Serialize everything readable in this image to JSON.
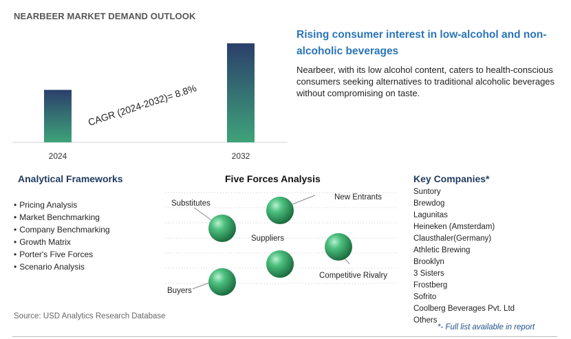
{
  "page_title": "NEARBEER MARKET DEMAND OUTLOOK",
  "chart_data": {
    "type": "bar",
    "categories": [
      "2024",
      "2032"
    ],
    "values": [
      0.53,
      1.0
    ],
    "value_note": "relative bar heights, no axis printed",
    "annotation": "CAGR (2024-2032)=   8.8%",
    "colors": {
      "top": "#2b3f6b",
      "bottom": "#3fa37a"
    }
  },
  "headline": "Rising consumer interest in low-alcohol and non-alcoholic beverages",
  "description": "Nearbeer, with its low alcohol content, caters to health-conscious consumers seeking alternatives to traditional alcoholic beverages without compromising on taste.",
  "frameworks": {
    "title": "Analytical Frameworks",
    "items": [
      "Pricing Analysis",
      "Market Benchmarking",
      "Company Benchmarking",
      "Growth Matrix",
      "Porter's Five Forces",
      "Scenario Analysis"
    ]
  },
  "five_forces": {
    "title": "Five Forces Analysis",
    "labels": {
      "substitutes": "Substitutes",
      "new_entrants": "New Entrants",
      "suppliers": "Suppliers",
      "competitive_rivalry": "Competitive Rivalry",
      "buyers": "Buyers"
    },
    "sphere_color": "#2e9a5e"
  },
  "companies": {
    "title": "Key Companies*",
    "items": [
      "Suntory",
      "Brewdog",
      "Lagunitas",
      "Heineken (Amsterdam)",
      "Clausthaler(Germany)",
      "Athletic Brewing",
      "Brooklyn",
      "3 Sisters",
      "Frostberg",
      "Sofrito",
      "Coolberg Beverages Pvt. Ltd",
      "Others"
    ],
    "note": "*- Full list available in report"
  },
  "source": "Source: USD Analytics Research Database"
}
